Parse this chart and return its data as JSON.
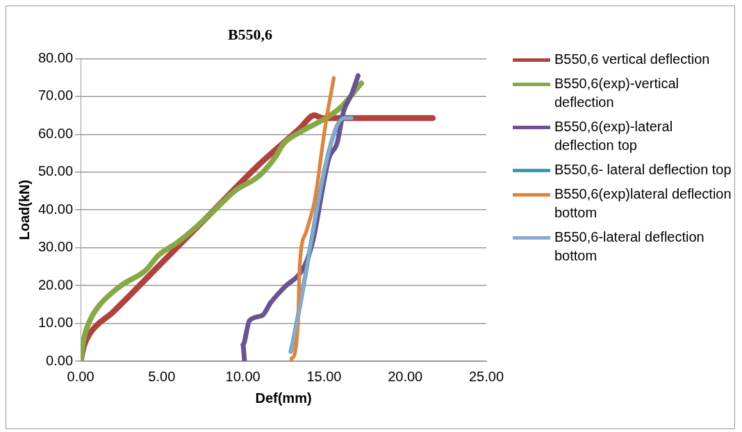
{
  "chart_data": {
    "type": "line",
    "title": "B550,6",
    "xlabel": "Def(mm)",
    "ylabel": "Load(kN)",
    "xlim": [
      0,
      25
    ],
    "xticks": [
      {
        "value": 0,
        "label": "0.00"
      },
      {
        "value": 5,
        "label": "5.00"
      },
      {
        "value": 10,
        "label": "10.00"
      },
      {
        "value": 15,
        "label": "15.00"
      },
      {
        "value": 20,
        "label": "20.00"
      },
      {
        "value": 25,
        "label": "25.00"
      }
    ],
    "ylim": [
      0,
      80
    ],
    "yticks": [
      {
        "value": 0,
        "label": "0.00"
      },
      {
        "value": 10,
        "label": "10.00"
      },
      {
        "value": 20,
        "label": "20.00"
      },
      {
        "value": 30,
        "label": "30.00"
      },
      {
        "value": 40,
        "label": "40.00"
      },
      {
        "value": 50,
        "label": "50.00"
      },
      {
        "value": 60,
        "label": "60.00"
      },
      {
        "value": 70,
        "label": "70.00"
      },
      {
        "value": 80,
        "label": "80.00"
      }
    ],
    "grid": "y",
    "legend": "right",
    "marker": "none",
    "line_style": "solid",
    "series": [
      {
        "name": "B550,6 vertical deflection",
        "color": "#b0423d",
        "x": [
          0,
          0.2,
          0.6,
          2,
          5,
          8,
          11,
          13.5,
          14.4,
          14.9,
          21.7
        ],
        "values": [
          0,
          4,
          7.5,
          13,
          26,
          39,
          52,
          61.5,
          65,
          64.3,
          64.3
        ]
      },
      {
        "name": "B550,6(exp)-vertical deflection",
        "color": "#86a845",
        "x": [
          0,
          0.2,
          0.6,
          1.2,
          2.5,
          4,
          4.8,
          6,
          7,
          8.5,
          9.5,
          11,
          12,
          12.5,
          13.5,
          15,
          16,
          17.3
        ],
        "values": [
          0,
          6,
          11,
          15,
          20,
          24,
          28,
          31.5,
          35,
          41,
          45,
          49,
          54,
          57.5,
          60.5,
          64,
          67,
          73.5
        ]
      },
      {
        "name": "B550,6(exp)-lateral deflection top",
        "color": "#6a5294",
        "x": [
          10.1,
          10,
          10.4,
          11.2,
          11.7,
          12.5,
          13.8,
          14.3,
          15.3,
          15.8,
          16.2,
          16.7,
          17.1
        ],
        "values": [
          0,
          4.3,
          10.7,
          12.1,
          15.4,
          19.3,
          25.2,
          31.6,
          53.7,
          57.6,
          66,
          70.6,
          75.5
        ]
      },
      {
        "name": "B550,6- lateral deflection top",
        "color": "#3c9bb2",
        "x": [
          12.95,
          16.25,
          16.7
        ],
        "values": [
          2.5,
          64.3,
          64.3
        ]
      },
      {
        "name": "B550,6(exp)lateral deflection bottom",
        "color": "#e0843a",
        "x": [
          13,
          13,
          13.4,
          13.5,
          13.9,
          14.4,
          14.6,
          14.8,
          15.1,
          15.6
        ],
        "values": [
          0,
          0.8,
          10.7,
          25.2,
          34.2,
          42,
          47.2,
          53.7,
          62.8,
          74.9
        ]
      },
      {
        "name": "B550,6-lateral deflection bottom",
        "color": "#8ca8d0",
        "x": [
          12.95,
          16.25,
          16.7
        ],
        "values": [
          2.5,
          64.3,
          64.3
        ]
      }
    ]
  }
}
